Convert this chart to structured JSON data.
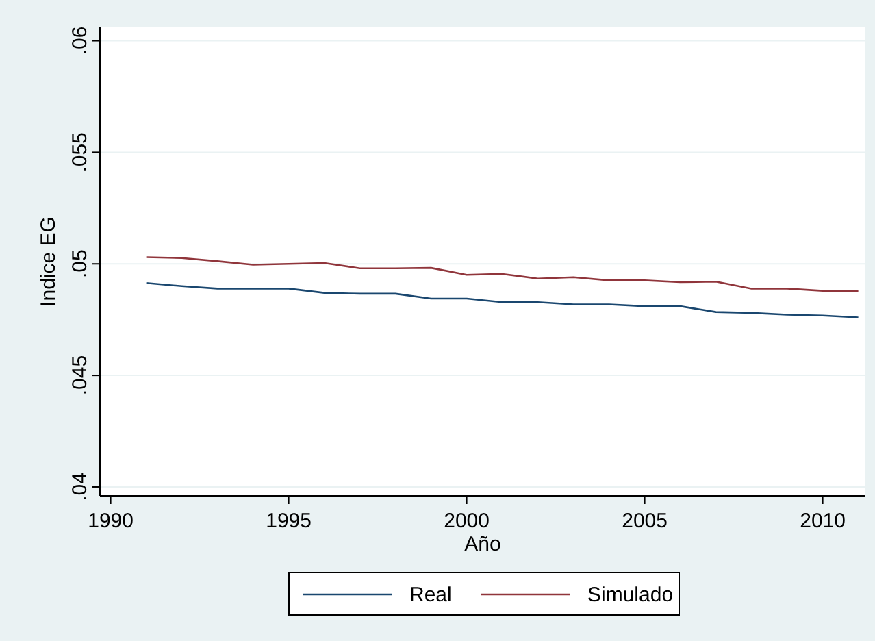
{
  "chart_data": {
    "type": "line",
    "xlabel": "Año",
    "ylabel": "Indice EG",
    "x": [
      1991,
      1992,
      1993,
      1994,
      1995,
      1996,
      1997,
      1998,
      1999,
      2000,
      2001,
      2002,
      2003,
      2004,
      2005,
      2006,
      2007,
      2008,
      2009,
      2010,
      2011
    ],
    "series": [
      {
        "name": "Real",
        "color": "#1a476f",
        "values": [
          0.04914,
          0.049,
          0.04889,
          0.04889,
          0.04889,
          0.0487,
          0.04866,
          0.04866,
          0.04844,
          0.04844,
          0.04828,
          0.04828,
          0.04818,
          0.04818,
          0.0481,
          0.0481,
          0.04784,
          0.0478,
          0.04772,
          0.04768,
          0.0476
        ]
      },
      {
        "name": "Simulado",
        "color": "#90353b",
        "values": [
          0.0503,
          0.05026,
          0.05012,
          0.04996,
          0.05,
          0.05004,
          0.0498,
          0.0498,
          0.04982,
          0.04951,
          0.04955,
          0.04934,
          0.0494,
          0.04926,
          0.04926,
          0.04918,
          0.0492,
          0.04889,
          0.04889,
          0.04879,
          0.04879
        ]
      }
    ],
    "xlim": [
      1989.7,
      2011.2
    ],
    "xticks": [
      1990,
      1995,
      2000,
      2005,
      2010
    ],
    "ylim": [
      0.0396,
      0.0606
    ],
    "yticks": [
      {
        "value": 0.04,
        "label": ".04"
      },
      {
        "value": 0.045,
        "label": ".045"
      },
      {
        "value": 0.05,
        "label": ".05"
      },
      {
        "value": 0.055,
        "label": ".055"
      },
      {
        "value": 0.06,
        "label": ".06"
      }
    ],
    "grid": "y",
    "legend": "bottom",
    "marker": "none",
    "line_style": "solid"
  }
}
